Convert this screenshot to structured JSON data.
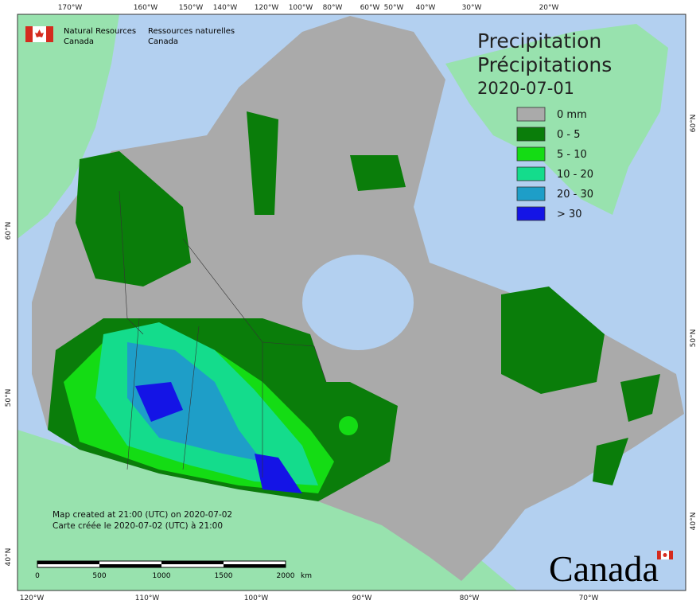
{
  "header": {
    "org_en": [
      "Natural Resources",
      "Canada"
    ],
    "org_fr": [
      "Ressources naturelles",
      "Canada"
    ]
  },
  "title": {
    "en": "Precipitation",
    "fr": "Précipitations",
    "date": "2020-07-01"
  },
  "legend": [
    {
      "label": "0 mm",
      "color": "#aaaaaa"
    },
    {
      "label": "0 - 5",
      "color": "#0a7d0a"
    },
    {
      "label": "5 - 10",
      "color": "#14dc14"
    },
    {
      "label": "10 - 20",
      "color": "#14dc8c"
    },
    {
      "label": "20 - 30",
      "color": "#1e9ec8"
    },
    {
      "label": "> 30",
      "color": "#1414e6"
    }
  ],
  "top_labels": [
    "170°W",
    "160°W",
    "150°W",
    "140°W",
    "120°W",
    "100°W",
    "80°W",
    "60°W",
    "50°W",
    "40°W",
    "30°W",
    "20°W"
  ],
  "bottom_labels": [
    "120°W",
    "110°W",
    "100°W",
    "90°W",
    "80°W",
    "70°W"
  ],
  "left_labels": [
    "60°N",
    "50°N",
    "40°N"
  ],
  "right_labels": [
    "60°N",
    "50°N",
    "40°N"
  ],
  "footer": {
    "created_en": "Map created at 21:00 (UTC) on 2020-07-02",
    "created_fr": "Carte créée le 2020-07-02 (UTC) à 21:00"
  },
  "scale_bar": {
    "labels": [
      "0",
      "500",
      "1000",
      "1500",
      "2000"
    ],
    "unit": "km"
  },
  "wordmark": "Canada"
}
